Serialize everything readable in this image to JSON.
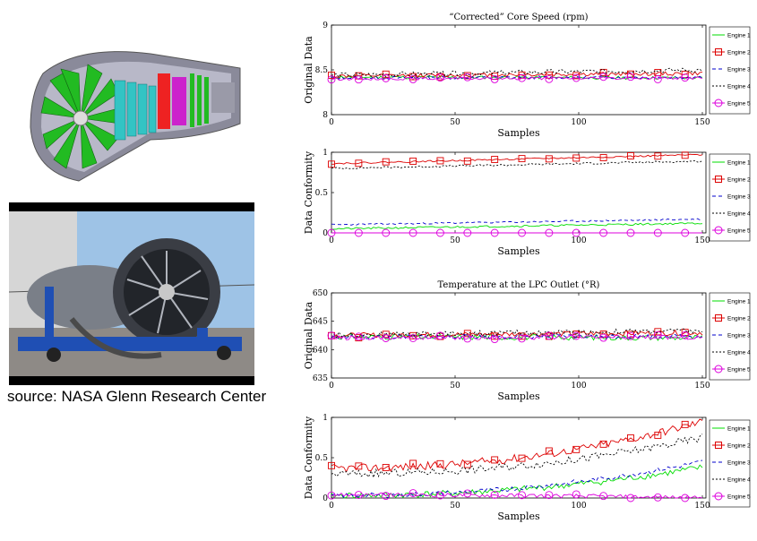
{
  "caption": "source: NASA Glenn Research Center",
  "legend_engines": [
    "Engine 1",
    "Engine 2",
    "Engine 3",
    "Engine 4",
    "Engine 5"
  ],
  "colors": {
    "engine1": "#00dd00",
    "engine2": "#dd0000",
    "engine3": "#0000cc",
    "engine4": "#000000",
    "engine5": "#dd00dd"
  },
  "chart_data": [
    {
      "type": "line",
      "title": "“Corrected” Core Speed (rpm)",
      "xlabel": "Samples",
      "ylabel": "Original Data",
      "xlim": [
        0,
        150
      ],
      "ylim": [
        8,
        9
      ],
      "xticks": [
        0,
        50,
        100,
        150
      ],
      "yticks": [
        8,
        8.5,
        9
      ],
      "ytick_labels": [
        "8",
        "8.5",
        "9"
      ],
      "legend": "right",
      "series": [
        {
          "name": "Engine 1",
          "start": 8.42,
          "end": 8.41,
          "noise": 0.018,
          "seed": 11
        },
        {
          "name": "Engine 2",
          "start": 8.43,
          "end": 8.46,
          "noise": 0.022,
          "seed": 12
        },
        {
          "name": "Engine 3",
          "start": 8.41,
          "end": 8.42,
          "noise": 0.017,
          "seed": 13
        },
        {
          "name": "Engine 4",
          "start": 8.44,
          "end": 8.5,
          "noise": 0.028,
          "seed": 14
        },
        {
          "name": "Engine 5",
          "start": 8.4,
          "end": 8.41,
          "noise": 0.015,
          "seed": 15
        }
      ]
    },
    {
      "type": "line",
      "title": "",
      "xlabel": "Samples",
      "ylabel": "Data Conformity",
      "xlim": [
        0,
        150
      ],
      "ylim": [
        0,
        1
      ],
      "xticks": [
        0,
        50,
        100,
        150
      ],
      "yticks": [
        0,
        0.5,
        1
      ],
      "ytick_labels": [
        "0",
        "0.5",
        "1"
      ],
      "legend": "right",
      "series": [
        {
          "name": "Engine 1",
          "start": 0.05,
          "end": 0.12,
          "noise": 0.012,
          "seed": 21
        },
        {
          "name": "Engine 2",
          "start": 0.86,
          "end": 0.97,
          "noise": 0.01,
          "seed": 22
        },
        {
          "name": "Engine 3",
          "start": 0.1,
          "end": 0.17,
          "noise": 0.01,
          "seed": 23
        },
        {
          "name": "Engine 4",
          "start": 0.8,
          "end": 0.89,
          "noise": 0.012,
          "seed": 24
        },
        {
          "name": "Engine 5",
          "start": 0.0,
          "end": 0.0,
          "noise": 0.0,
          "seed": 25
        }
      ]
    },
    {
      "type": "line",
      "title": "Temperature at the LPC Outlet (°R)",
      "xlabel": "Samples",
      "ylabel": "Original Data",
      "xlim": [
        0,
        150
      ],
      "ylim": [
        635,
        650
      ],
      "xticks": [
        0,
        50,
        100,
        150
      ],
      "yticks": [
        635,
        640,
        645,
        650
      ],
      "ytick_labels": [
        "635",
        "640",
        "645",
        "650"
      ],
      "legend": "right",
      "series": [
        {
          "name": "Engine 1",
          "start": 642.3,
          "end": 642.1,
          "noise": 0.5,
          "seed": 31
        },
        {
          "name": "Engine 2",
          "start": 642.5,
          "end": 643.0,
          "noise": 0.45,
          "seed": 32
        },
        {
          "name": "Engine 3",
          "start": 642.2,
          "end": 642.4,
          "noise": 0.4,
          "seed": 33
        },
        {
          "name": "Engine 4",
          "start": 642.6,
          "end": 643.3,
          "noise": 0.5,
          "seed": 34
        },
        {
          "name": "Engine 5",
          "start": 642.1,
          "end": 642.2,
          "noise": 0.4,
          "seed": 35
        }
      ]
    },
    {
      "type": "line",
      "title": "",
      "xlabel": "Samples",
      "ylabel": "Data Conformity",
      "xlim": [
        0,
        150
      ],
      "ylim": [
        0,
        1
      ],
      "xticks": [
        0,
        50,
        100,
        150
      ],
      "yticks": [
        0,
        0.5,
        1
      ],
      "ytick_labels": [
        "0",
        "0.5",
        "1"
      ],
      "legend": "right",
      "series": [
        {
          "name": "Engine 1",
          "start": 0.03,
          "end": 0.38,
          "noise": 0.04,
          "seed": 41
        },
        {
          "name": "Engine 2",
          "start": 0.37,
          "end": 0.95,
          "noise": 0.05,
          "seed": 42
        },
        {
          "name": "Engine 3",
          "start": 0.03,
          "end": 0.45,
          "noise": 0.03,
          "seed": 43
        },
        {
          "name": "Engine 4",
          "start": 0.3,
          "end": 0.75,
          "noise": 0.05,
          "seed": 44
        },
        {
          "name": "Engine 5",
          "start": 0.04,
          "end": 0.0,
          "noise": 0.025,
          "seed": 45
        }
      ]
    }
  ]
}
